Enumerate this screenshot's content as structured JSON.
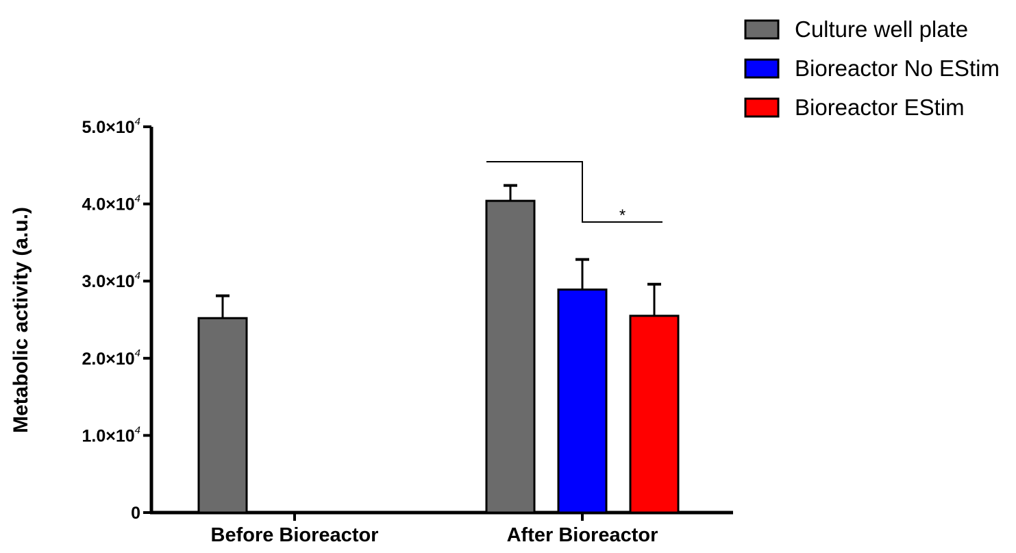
{
  "chart_data": {
    "type": "bar",
    "categories": [
      "Before Bioreactor",
      "After Bioreactor"
    ],
    "series": [
      {
        "name": "Culture well plate",
        "color": "#6b6b6b",
        "values": [
          25200,
          40400
        ],
        "errors": [
          2900,
          2000
        ]
      },
      {
        "name": "Bioreactor No EStim",
        "color": "#0000ff",
        "values": [
          null,
          28900
        ],
        "errors": [
          null,
          3900
        ]
      },
      {
        "name": "Bioreactor EStim",
        "color": "#ff0000",
        "values": [
          null,
          25500
        ],
        "errors": [
          null,
          4100
        ]
      }
    ],
    "ylabel": "Metabolic activity (a.u.)",
    "ylim": [
      0,
      50000
    ],
    "yticks": [
      {
        "value": 0,
        "mantissa": "0",
        "exp": ""
      },
      {
        "value": 10000,
        "mantissa": "1.0×10",
        "exp": "4"
      },
      {
        "value": 20000,
        "mantissa": "2.0×10",
        "exp": "4"
      },
      {
        "value": 30000,
        "mantissa": "3.0×10",
        "exp": "4"
      },
      {
        "value": 40000,
        "mantissa": "4.0×10",
        "exp": "4"
      },
      {
        "value": 50000,
        "mantissa": "5.0×10",
        "exp": "4"
      }
    ],
    "legend_position": "top-right",
    "annotations": [
      {
        "text": "*",
        "category": "After Bioreactor",
        "from_series": 0,
        "to_series": 2
      }
    ]
  }
}
